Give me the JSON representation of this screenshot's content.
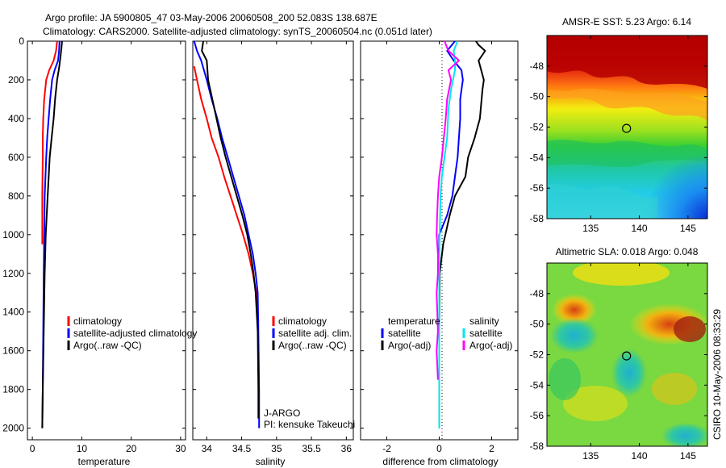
{
  "title": {
    "line1": "Argo profile: JA 5900805_47 03-May-2006 20060508_200 52.083S 138.687E",
    "line2": "Climatology: CARS2000. Satellite-adjusted climatology: synTS_20060504.nc (0.051d later)"
  },
  "credit": "CSIRO 10-May-2006 08:33:29",
  "colors": {
    "climatology": "#ff0000",
    "satellite": "#0000ff",
    "argo": "#000000",
    "satellite_diff_salinity": "#00e5ee",
    "argo_diff_salinity": "#ff00ff"
  },
  "chart_data": [
    {
      "type": "line",
      "xlabel": "temperature",
      "ylabel": "",
      "xlim": [
        -1,
        31
      ],
      "ylim": [
        0,
        2060
      ],
      "y_reversed": true,
      "xticks": [
        0,
        10,
        20,
        30
      ],
      "yticks": [
        0,
        200,
        400,
        600,
        800,
        1000,
        1200,
        1400,
        1600,
        1800,
        2000
      ],
      "legend": [
        "climatology",
        "satellite-adjusted climatology",
        "Argo(..raw -QC)"
      ],
      "series": [
        {
          "name": "climatology",
          "color": "#ff0000",
          "x": [
            5.0,
            4.8,
            4.3,
            3.4,
            2.8,
            2.4,
            2.2,
            2.1,
            2.1,
            2.0,
            2.0,
            2.0
          ],
          "y": [
            0,
            50,
            100,
            150,
            200,
            300,
            400,
            500,
            600,
            800,
            1000,
            1050
          ]
        },
        {
          "name": "satellite-adjusted climatology",
          "color": "#0000ff",
          "x": [
            5.5,
            5.4,
            5.2,
            4.5,
            4.0,
            3.6,
            3.3,
            3.0,
            2.8,
            2.5,
            2.4,
            2.3,
            2.2,
            2.1,
            2.0
          ],
          "y": [
            0,
            50,
            100,
            150,
            200,
            300,
            400,
            500,
            600,
            800,
            1000,
            1200,
            1500,
            1800,
            2000
          ]
        },
        {
          "name": "Argo(..raw -QC)",
          "color": "#000000",
          "x": [
            6.0,
            5.9,
            5.7,
            5.4,
            5.0,
            4.6,
            4.3,
            3.9,
            3.5,
            3.1,
            2.7,
            2.5,
            2.3,
            2.1,
            2.0
          ],
          "y": [
            0,
            30,
            80,
            140,
            200,
            300,
            400,
            500,
            600,
            800,
            1000,
            1200,
            1500,
            1800,
            2000
          ]
        }
      ]
    },
    {
      "type": "line",
      "xlabel": "salinity",
      "ylabel": "",
      "xlim": [
        33.8,
        36.1
      ],
      "ylim": [
        0,
        2060
      ],
      "y_reversed": true,
      "xticks": [
        34,
        34.5,
        35,
        35.5,
        36
      ],
      "xticklabels": [
        "34",
        "34.5",
        "35",
        "35.5",
        "36"
      ],
      "legend": [
        "climatology",
        "satellite adj. clim.",
        "Argo(..raw -QC)"
      ],
      "annotation": [
        "J-ARGO",
        "PI: kensuke Takeuchi"
      ],
      "series": [
        {
          "name": "climatology",
          "color": "#ff0000",
          "x": [
            33.82,
            33.86,
            33.92,
            34.0,
            34.07,
            34.17,
            34.25,
            34.34,
            34.43,
            34.52,
            34.6,
            34.66,
            34.71,
            34.73,
            34.74
          ],
          "y": [
            130,
            200,
            300,
            400,
            500,
            600,
            700,
            800,
            900,
            1000,
            1100,
            1200,
            1300,
            1400,
            1450
          ]
        },
        {
          "name": "satellite adj. clim.",
          "color": "#0000ff",
          "x": [
            33.82,
            33.86,
            33.92,
            34.0,
            34.07,
            34.15,
            34.22,
            34.3,
            34.38,
            34.46,
            34.54,
            34.6,
            34.66,
            34.7,
            34.73,
            34.74,
            34.75,
            34.75
          ],
          "y": [
            0,
            50,
            100,
            200,
            300,
            400,
            500,
            600,
            700,
            800,
            900,
            1000,
            1100,
            1200,
            1300,
            1500,
            1800,
            2000
          ]
        },
        {
          "name": "Argo(..raw -QC)",
          "color": "#000000",
          "x": [
            33.95,
            33.93,
            34.0,
            34.02,
            34.08,
            34.14,
            34.2,
            34.27,
            34.35,
            34.43,
            34.51,
            34.58,
            34.63,
            34.67,
            34.7,
            34.73,
            34.74,
            34.74
          ],
          "y": [
            0,
            50,
            100,
            200,
            300,
            400,
            500,
            600,
            700,
            800,
            900,
            1000,
            1100,
            1200,
            1300,
            1500,
            1800,
            1950
          ]
        }
      ]
    },
    {
      "type": "line",
      "xlabel": "difference from climatology",
      "ylabel": "",
      "xlim": [
        -3,
        3
      ],
      "ylim": [
        0,
        2060
      ],
      "y_reversed": true,
      "xticks": [
        -2,
        0,
        2
      ],
      "legend_temperature_title": "temperature",
      "legend_salinity_title": "salinity",
      "legend_temperature": [
        "satellite",
        "Argo(-adj)"
      ],
      "legend_salinity": [
        "satellite",
        "Argo(-adj)"
      ],
      "series": [
        {
          "name": "temperature satellite",
          "color": "#0000ff",
          "x": [
            0.6,
            0.3,
            0.55,
            0.85,
            0.9,
            0.8,
            0.8,
            0.75,
            0.7,
            0.6,
            0.5,
            0.3,
            0.0,
            0.0,
            0.0,
            0.0
          ],
          "y": [
            0,
            50,
            100,
            150,
            200,
            300,
            400,
            500,
            600,
            700,
            800,
            900,
            1000,
            1200,
            1500,
            2000
          ]
        },
        {
          "name": "temperature Argo(-adj)",
          "color": "#000000",
          "x": [
            1.4,
            1.5,
            1.75,
            1.5,
            1.7,
            1.65,
            1.55,
            1.35,
            1.1,
            1.0,
            0.6,
            0.4,
            0.15,
            0.02,
            0.0,
            0.0,
            0.0
          ],
          "y": [
            0,
            20,
            50,
            100,
            200,
            250,
            400,
            500,
            600,
            700,
            800,
            900,
            1050,
            1200,
            1500,
            1800,
            2000
          ]
        },
        {
          "name": "salinity satellite",
          "color": "#00e5ee",
          "x": [
            0.7,
            0.55,
            0.6,
            0.6,
            0.45,
            0.35,
            0.3,
            0.2,
            0.1,
            0.05,
            0.02,
            0.0,
            0.0,
            0.0
          ],
          "y": [
            0,
            50,
            100,
            150,
            250,
            350,
            500,
            600,
            700,
            800,
            1000,
            1200,
            1500,
            2000
          ]
        },
        {
          "name": "salinity Argo(-adj)",
          "color": "#ff00ff",
          "x": [
            0.2,
            0.35,
            0.75,
            0.35,
            0.45,
            0.3,
            0.25,
            0.1,
            0.0,
            -0.05,
            -0.08,
            -0.1,
            -0.05,
            -0.05,
            -0.1,
            -0.05,
            -0.1,
            -0.05
          ],
          "y": [
            0,
            50,
            100,
            150,
            200,
            300,
            400,
            600,
            700,
            800,
            900,
            1000,
            1100,
            1200,
            1300,
            1500,
            1600,
            1750
          ]
        }
      ]
    },
    {
      "type": "heatmap",
      "title": "AMSR-E SST: 5.23 Argo: 6.14",
      "xlim": [
        130.5,
        147
      ],
      "ylim": [
        -58,
        -46
      ],
      "xticks": [
        135,
        140,
        145
      ],
      "yticks": [
        -48,
        -50,
        -52,
        -54,
        -56,
        -58
      ],
      "marker": {
        "lon": 138.687,
        "lat": -52.083
      }
    },
    {
      "type": "heatmap",
      "title": "Altimetric SLA: 0.018 Argo: 0.048",
      "xlim": [
        130.5,
        147
      ],
      "ylim": [
        -58,
        -46
      ],
      "xticks": [
        135,
        140,
        145
      ],
      "yticks": [
        -48,
        -50,
        -52,
        -54,
        -56,
        -58
      ],
      "marker": {
        "lon": 138.687,
        "lat": -52.083
      }
    }
  ]
}
